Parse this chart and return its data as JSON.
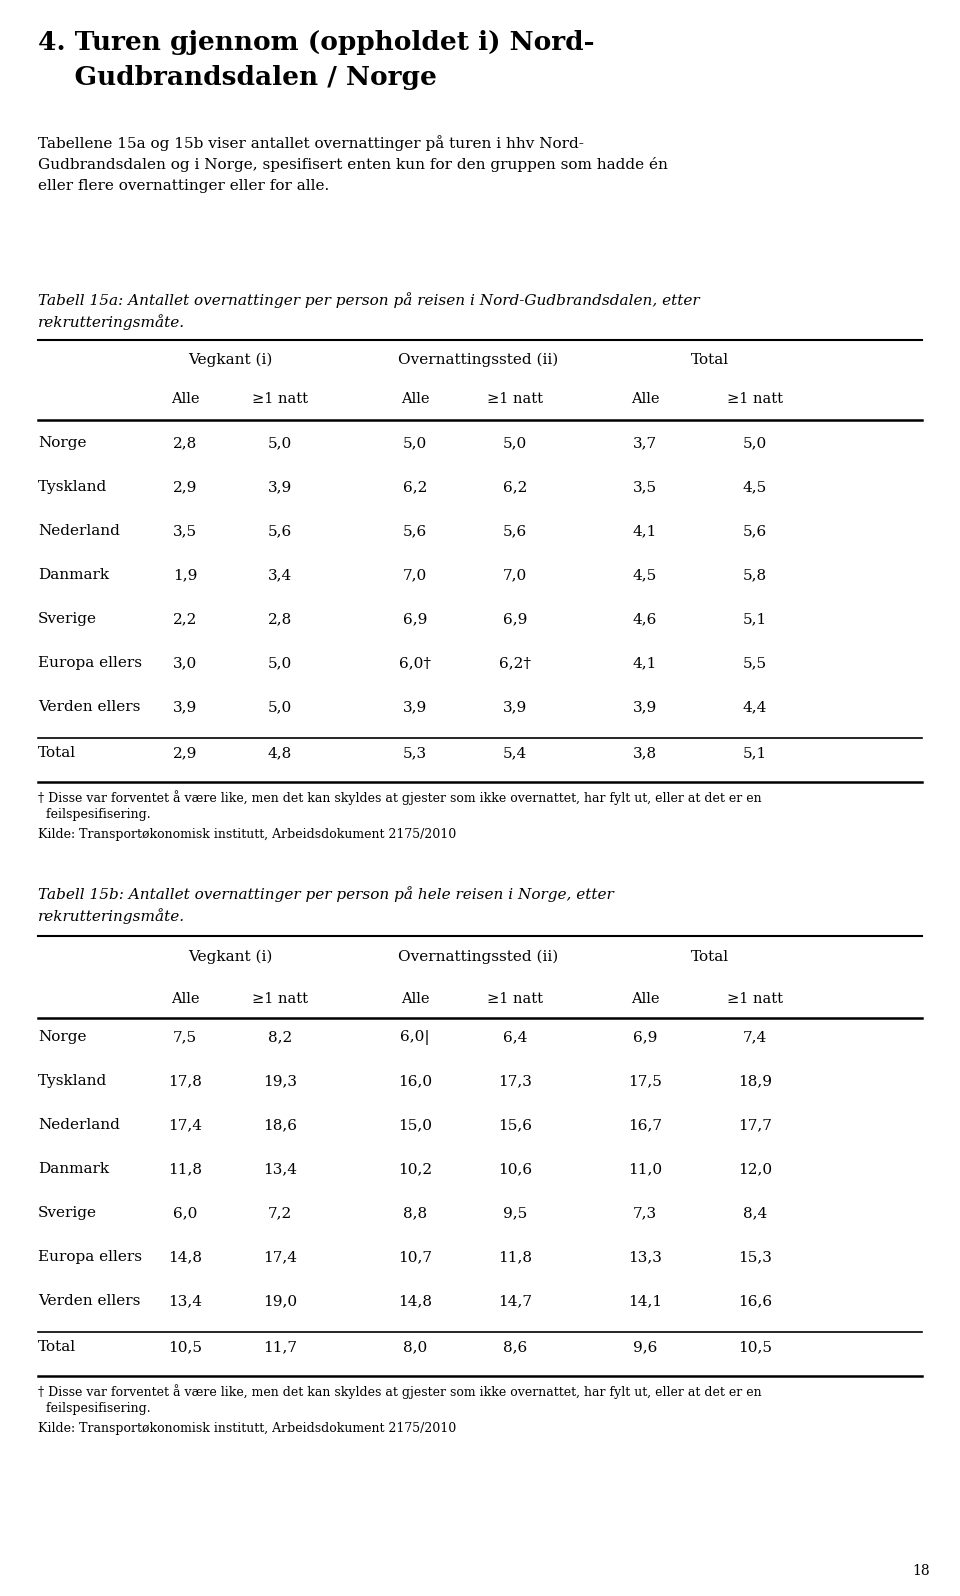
{
  "title_line1": "4. Turen gjennom (oppholdet i) Nord-",
  "title_line2": "    Gudbrandsdalen / Norge",
  "intro_text": "Tabellene 15a og 15b viser antallet overnattinger på turen i hhv Nord-\nGudbrandsdalen og i Norge, spesifisert enten kun for den gruppen som hadde én\neller flere overnattinger eller for alle.",
  "table1_caption_line1": "Tabell 15a: Antallet overnattinger per person på reisen i Nord-Gudbrandsdalen, etter",
  "table1_caption_line2": "rekrutteringsmåte.",
  "table2_caption_line1": "Tabell 15b: Antallet overnattinger per person på hele reisen i Norge, etter",
  "table2_caption_line2": "rekrutteringsmåte.",
  "col_group_headers": [
    "Vegkant (i)",
    "Overnattingssted (ii)",
    "Total"
  ],
  "col_sub_headers": [
    "Alle",
    "≥1 natt",
    "Alle",
    "≥1 natt",
    "Alle",
    "≥1 natt"
  ],
  "table1_rows": [
    [
      "Norge",
      "2,8",
      "5,0",
      "5,0",
      "5,0",
      "3,7",
      "5,0"
    ],
    [
      "Tyskland",
      "2,9",
      "3,9",
      "6,2",
      "6,2",
      "3,5",
      "4,5"
    ],
    [
      "Nederland",
      "3,5",
      "5,6",
      "5,6",
      "5,6",
      "4,1",
      "5,6"
    ],
    [
      "Danmark",
      "1,9",
      "3,4",
      "7,0",
      "7,0",
      "4,5",
      "5,8"
    ],
    [
      "Sverige",
      "2,2",
      "2,8",
      "6,9",
      "6,9",
      "4,6",
      "5,1"
    ],
    [
      "Europa ellers",
      "3,0",
      "5,0",
      "6,0†",
      "6,2†",
      "4,1",
      "5,5"
    ],
    [
      "Verden ellers",
      "3,9",
      "5,0",
      "3,9",
      "3,9",
      "3,9",
      "4,4"
    ]
  ],
  "table1_total": [
    "Total",
    "2,9",
    "4,8",
    "5,3",
    "5,4",
    "3,8",
    "5,1"
  ],
  "table1_footnote_line1": "† Disse var forventet å være like, men det kan skyldes at gjester som ikke overnattet, har fylt ut, eller at det er en",
  "table1_footnote_line2": "  feilspesifisering.",
  "table1_source": "Kilde: Transportøkonomisk institutt, Arbeidsdokument 2175/2010",
  "table2_rows": [
    [
      "Norge",
      "7,5",
      "8,2",
      "6,0|",
      "6,4",
      "6,9",
      "7,4"
    ],
    [
      "Tyskland",
      "17,8",
      "19,3",
      "16,0",
      "17,3",
      "17,5",
      "18,9"
    ],
    [
      "Nederland",
      "17,4",
      "18,6",
      "15,0",
      "15,6",
      "16,7",
      "17,7"
    ],
    [
      "Danmark",
      "11,8",
      "13,4",
      "10,2",
      "10,6",
      "11,0",
      "12,0"
    ],
    [
      "Sverige",
      "6,0",
      "7,2",
      "8,8",
      "9,5",
      "7,3",
      "8,4"
    ],
    [
      "Europa ellers",
      "14,8",
      "17,4",
      "10,7",
      "11,8",
      "13,3",
      "15,3"
    ],
    [
      "Verden ellers",
      "13,4",
      "19,0",
      "14,8",
      "14,7",
      "14,1",
      "16,6"
    ]
  ],
  "table2_total": [
    "Total",
    "10,5",
    "11,7",
    "8,0",
    "8,6",
    "9,6",
    "10,5"
  ],
  "table2_footnote_line1": "† Disse var forventet å være like, men det kan skyldes at gjester som ikke overnattet, har fylt ut, eller at det er en",
  "table2_footnote_line2": "  feilspesifisering.",
  "table2_source": "Kilde: Transportøkonomisk institutt, Arbeidsdokument 2175/2010",
  "page_number": "18",
  "bg_color": "#ffffff",
  "text_color": "#000000"
}
